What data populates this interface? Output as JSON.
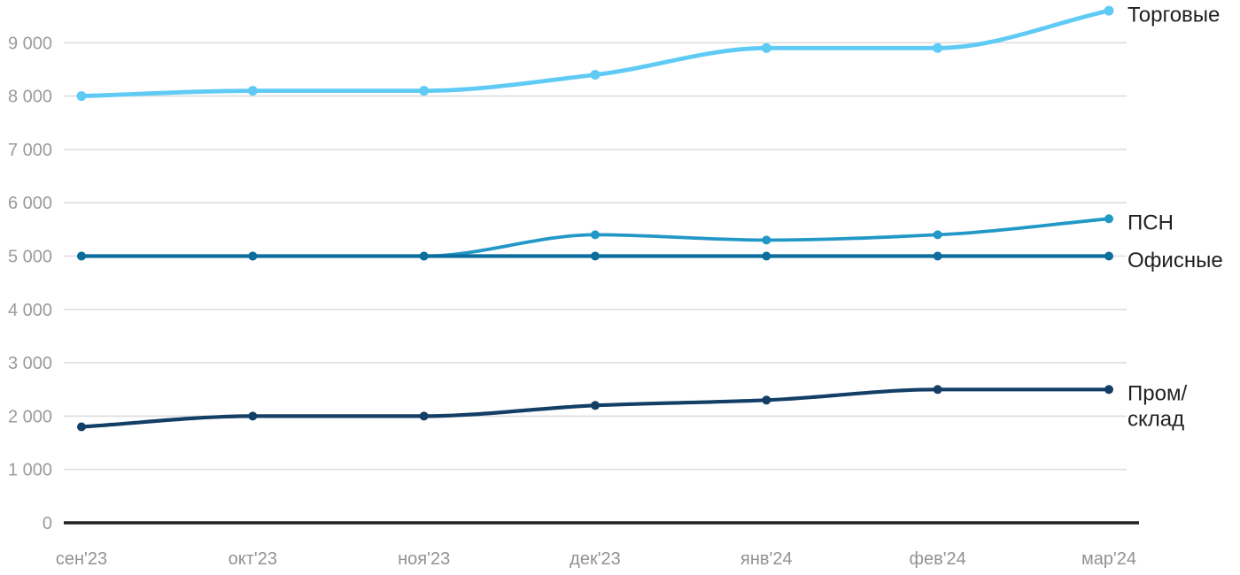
{
  "chart_data": {
    "type": "line",
    "title": "",
    "xlabel": "",
    "ylabel": "",
    "categories": [
      "сен'23",
      "окт'23",
      "ноя'23",
      "дек'23",
      "янв'24",
      "фев'24",
      "мар'24"
    ],
    "series": [
      {
        "name": "Торговые",
        "label_lines": [
          "Торговые"
        ],
        "color": "#5fcbf5",
        "values": [
          8000,
          8100,
          8100,
          8400,
          8900,
          8900,
          9600
        ]
      },
      {
        "name": "ПСН",
        "label_lines": [
          "ПСН"
        ],
        "color": "#2198c6",
        "values": [
          5000,
          5000,
          5000,
          5400,
          5300,
          5400,
          5700
        ]
      },
      {
        "name": "Офисные",
        "label_lines": [
          "Офисные"
        ],
        "color": "#0d6e9e",
        "values": [
          5000,
          5000,
          5000,
          5000,
          5000,
          5000,
          5000
        ]
      },
      {
        "name": "Пром/склад",
        "label_lines": [
          "Пром/",
          "склад"
        ],
        "color": "#133f66",
        "values": [
          1800,
          2000,
          2000,
          2200,
          2300,
          2500,
          2500
        ]
      }
    ],
    "yticks": [
      0,
      1000,
      2000,
      3000,
      4000,
      5000,
      6000,
      7000,
      8000,
      9000
    ],
    "ytick_labels": [
      "0",
      "1 000",
      "2 000",
      "3 000",
      "4 000",
      "5 000",
      "6 000",
      "7 000",
      "8 000",
      "9 000"
    ],
    "ylim": [
      0,
      9800
    ],
    "grid": true,
    "legend_position": "inline-right-of-last-point",
    "colors": {
      "background": "#ffffff",
      "gridline": "#dedede",
      "axis_line": "#212121",
      "tick_text": "#9b9b9b",
      "series_label_text": "#1f1f1f"
    }
  }
}
